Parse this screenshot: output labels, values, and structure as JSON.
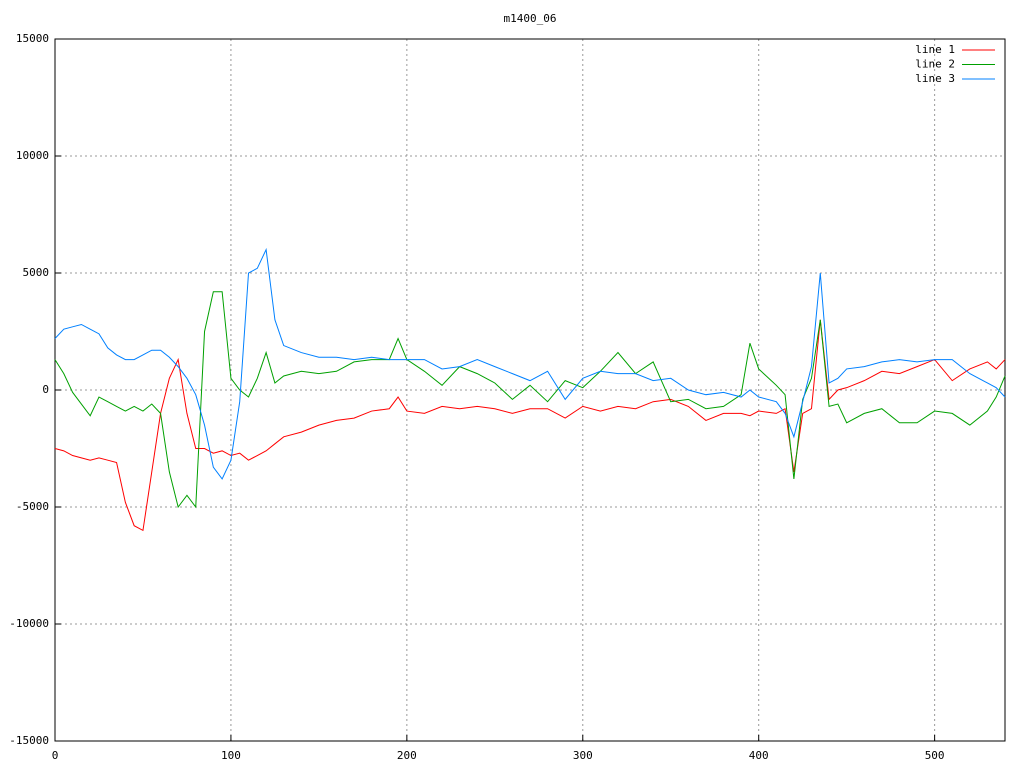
{
  "chart_data": {
    "type": "line",
    "title": "m1400_06",
    "x": [
      0,
      5,
      10,
      15,
      20,
      25,
      30,
      35,
      40,
      45,
      50,
      55,
      60,
      65,
      70,
      75,
      80,
      85,
      90,
      95,
      100,
      105,
      110,
      115,
      120,
      125,
      130,
      140,
      150,
      160,
      170,
      180,
      190,
      195,
      200,
      210,
      220,
      230,
      240,
      250,
      260,
      270,
      280,
      290,
      300,
      310,
      320,
      330,
      340,
      350,
      360,
      370,
      380,
      390,
      395,
      400,
      410,
      415,
      420,
      425,
      430,
      435,
      440,
      445,
      450,
      460,
      470,
      480,
      490,
      500,
      510,
      520,
      530,
      535,
      540
    ],
    "series": [
      {
        "name": "line 1",
        "color": "#ff0000",
        "values": [
          -2500,
          -2600,
          -2800,
          -2900,
          -3000,
          -2900,
          -3000,
          -3100,
          -4800,
          -5800,
          -6000,
          -3500,
          -1000,
          500,
          1300,
          -1000,
          -2500,
          -2500,
          -2700,
          -2600,
          -2800,
          -2700,
          -3000,
          -2800,
          -2600,
          -2300,
          -2000,
          -1800,
          -1500,
          -1300,
          -1200,
          -900,
          -800,
          -300,
          -900,
          -1000,
          -700,
          -800,
          -700,
          -800,
          -1000,
          -800,
          -800,
          -1200,
          -700,
          -900,
          -700,
          -800,
          -500,
          -400,
          -700,
          -1300,
          -1000,
          -1000,
          -1100,
          -900,
          -1000,
          -800,
          -3500,
          -1000,
          -800,
          3000,
          -400,
          0,
          100,
          400,
          800,
          700,
          1000,
          1300,
          400,
          900,
          1200,
          900,
          1300
        ]
      },
      {
        "name": "line 2",
        "color": "#00a000",
        "values": [
          1300,
          700,
          -100,
          -600,
          -1100,
          -300,
          -500,
          -700,
          -900,
          -700,
          -900,
          -600,
          -1000,
          -3500,
          -5000,
          -4500,
          -5000,
          2500,
          4200,
          4200,
          500,
          0,
          -300,
          500,
          1600,
          300,
          600,
          800,
          700,
          800,
          1200,
          1300,
          1300,
          2200,
          1300,
          800,
          200,
          1000,
          700,
          300,
          -400,
          200,
          -500,
          400,
          100,
          800,
          1600,
          700,
          1200,
          -500,
          -400,
          -800,
          -700,
          -200,
          2000,
          900,
          200,
          -200,
          -3800,
          -400,
          500,
          3000,
          -700,
          -600,
          -1400,
          -1000,
          -800,
          -1400,
          -1400,
          -900,
          -1000,
          -1500,
          -900,
          -300,
          600
        ]
      },
      {
        "name": "line 3",
        "color": "#0080ff",
        "values": [
          2200,
          2600,
          2700,
          2800,
          2600,
          2400,
          1800,
          1500,
          1300,
          1300,
          1500,
          1700,
          1700,
          1400,
          1000,
          500,
          -200,
          -1500,
          -3300,
          -3800,
          -3000,
          -500,
          5000,
          5200,
          6000,
          3000,
          1900,
          1600,
          1400,
          1400,
          1300,
          1400,
          1300,
          1300,
          1300,
          1300,
          900,
          1000,
          1300,
          1000,
          700,
          400,
          800,
          -400,
          500,
          800,
          700,
          700,
          400,
          500,
          0,
          -200,
          -100,
          -300,
          0,
          -300,
          -500,
          -1000,
          -2000,
          -500,
          1000,
          5000,
          300,
          500,
          900,
          1000,
          1200,
          1300,
          1200,
          1300,
          1300,
          700,
          300,
          100,
          -300
        ]
      }
    ],
    "xlim": [
      0,
      540
    ],
    "xticks": [
      0,
      100,
      200,
      300,
      400,
      500
    ],
    "ylim": [
      -15000,
      15000
    ],
    "yticks": [
      -15000,
      -10000,
      -5000,
      0,
      5000,
      10000,
      15000
    ],
    "grid": true,
    "legend": "top-right"
  }
}
